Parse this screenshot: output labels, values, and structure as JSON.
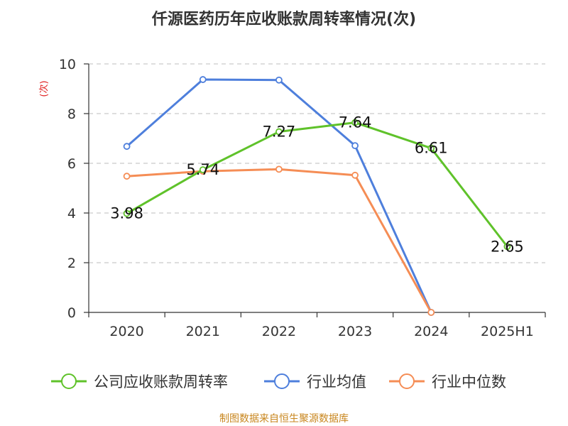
{
  "chart_data": {
    "type": "line",
    "title": "仟源医药历年应收账款周转率情况(次)",
    "ylabel": "(次)",
    "xlabel": "",
    "categories": [
      "2020",
      "2021",
      "2022",
      "2023",
      "2024",
      "2025H1"
    ],
    "ylim": [
      0,
      10
    ],
    "yticks": [
      0,
      2,
      4,
      6,
      8,
      10
    ],
    "grid": true,
    "legend_position": "bottom",
    "series": [
      {
        "name": "公司应收账款周转率",
        "color": "#5fc22a",
        "values": [
          3.98,
          5.74,
          7.27,
          7.64,
          6.61,
          2.65
        ],
        "labels": [
          "3.98",
          "5.74",
          "7.27",
          "7.64",
          "6.61",
          "2.65"
        ]
      },
      {
        "name": "行业均值",
        "color": "#4e7fdc",
        "values": [
          6.68,
          9.37,
          9.35,
          6.71,
          0,
          null
        ]
      },
      {
        "name": "行业中位数",
        "color": "#f58d55",
        "values": [
          5.48,
          5.68,
          5.76,
          5.52,
          0,
          null
        ]
      }
    ]
  },
  "source": "制图数据来自恒生聚源数据库"
}
